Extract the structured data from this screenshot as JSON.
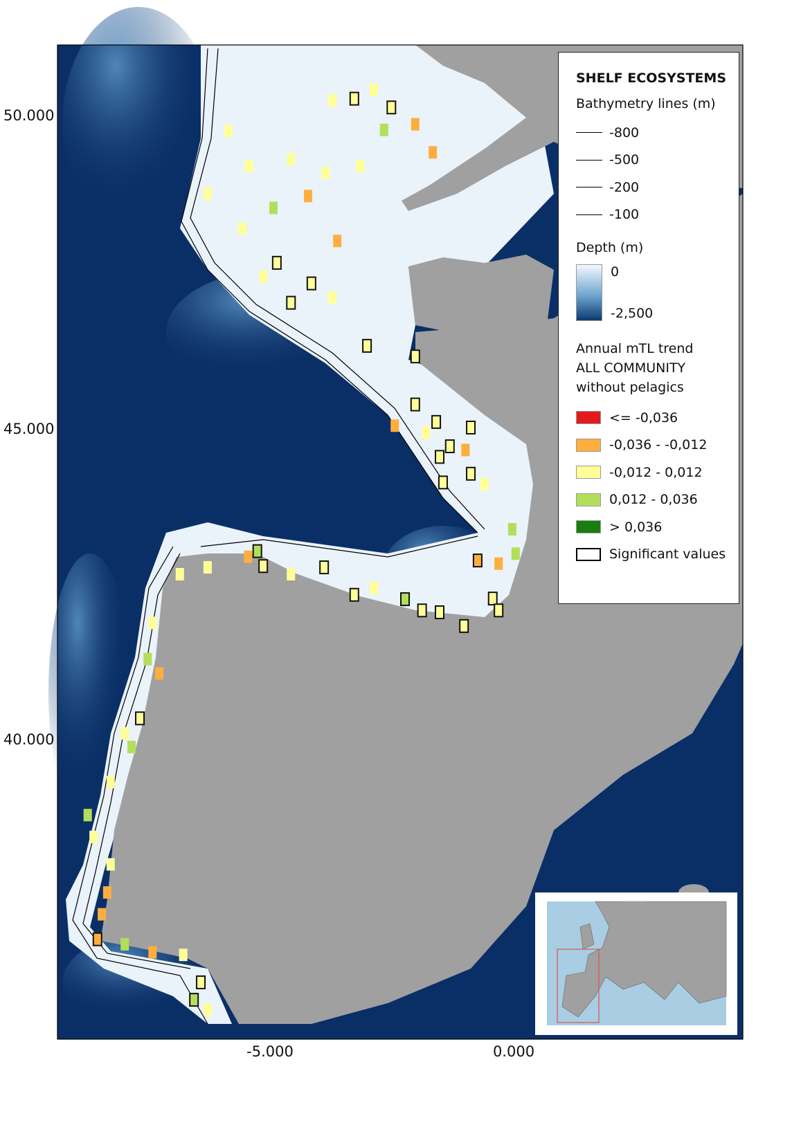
{
  "axes": {
    "lat_ticks": [
      "50.000",
      "45.000",
      "40.000"
    ],
    "lon_ticks": [
      "-5.000",
      "0.000"
    ]
  },
  "legend": {
    "title": "SHELF ECOSYSTEMS",
    "bathymetry_title": "Bathymetry lines (m)",
    "bathymetry": [
      "-800",
      "-500",
      "-200",
      "-100"
    ],
    "depth_title": "Depth (m)",
    "depth_max": "0",
    "depth_min": "-2,500",
    "trend_title_1": "Annual mTL trend",
    "trend_title_2": "ALL COMMUNITY",
    "trend_title_3": "without pelagics",
    "classes": [
      {
        "key": "r",
        "label": "<= -0,036",
        "color": "#e31a1c"
      },
      {
        "key": "o",
        "label": "-0,036 - -0,012",
        "color": "#fdae3f"
      },
      {
        "key": "y",
        "label": "-0,012 - 0,012",
        "color": "#ffff99"
      },
      {
        "key": "g",
        "label": "0,012 - 0,036",
        "color": "#b2df5a"
      },
      {
        "key": "dg",
        "label": "> 0,036",
        "color": "#1a7d10"
      }
    ],
    "significant_label": "Significant values"
  },
  "colors": {
    "ocean": "#0a2f66",
    "land": "#a0a0a0",
    "shelf": "#eaf2fa",
    "inset_sea": "#a9cde2",
    "inset_box": "#d9534f"
  },
  "cells": [
    [
      -3.27,
      50.27,
      "y",
      1
    ],
    [
      -2.51,
      50.13,
      "y",
      1
    ],
    [
      -2.87,
      50.41,
      "y",
      0
    ],
    [
      -3.72,
      50.24,
      "y",
      0
    ],
    [
      -2.02,
      49.86,
      "o",
      0
    ],
    [
      -2.66,
      49.77,
      "g",
      0
    ],
    [
      -1.66,
      49.41,
      "o",
      0
    ],
    [
      -4.22,
      48.71,
      "o",
      0
    ],
    [
      -4.93,
      48.52,
      "g",
      0
    ],
    [
      -3.62,
      47.99,
      "o",
      0
    ],
    [
      -4.86,
      47.64,
      "y",
      1
    ],
    [
      -4.15,
      47.31,
      "y",
      1
    ],
    [
      -4.57,
      47.0,
      "y",
      1
    ],
    [
      -5.85,
      49.75,
      "y",
      0
    ],
    [
      -5.43,
      49.19,
      "y",
      0
    ],
    [
      -6.28,
      48.75,
      "y",
      0
    ],
    [
      -4.57,
      49.3,
      "y",
      0
    ],
    [
      -3.86,
      49.08,
      "y",
      0
    ],
    [
      -3.15,
      49.19,
      "y",
      0
    ],
    [
      -5.57,
      48.19,
      "y",
      0
    ],
    [
      -5.14,
      47.42,
      "y",
      0
    ],
    [
      -3.72,
      47.08,
      "y",
      0
    ],
    [
      -3.01,
      46.31,
      "y",
      1
    ],
    [
      -2.02,
      46.14,
      "y",
      1
    ],
    [
      -2.02,
      45.37,
      "y",
      1
    ],
    [
      -2.44,
      45.03,
      "o",
      0
    ],
    [
      -1.59,
      45.09,
      "y",
      1
    ],
    [
      -0.88,
      45.0,
      "y",
      1
    ],
    [
      -1.8,
      44.92,
      "y",
      0
    ],
    [
      -1.31,
      44.7,
      "y",
      1
    ],
    [
      -0.99,
      44.64,
      "o",
      0
    ],
    [
      -1.52,
      44.53,
      "y",
      1
    ],
    [
      -0.88,
      44.26,
      "y",
      1
    ],
    [
      -1.45,
      44.12,
      "y",
      1
    ],
    [
      -0.6,
      44.09,
      "y",
      0
    ],
    [
      -0.03,
      43.37,
      "g",
      0
    ],
    [
      0.04,
      42.98,
      "g",
      0
    ],
    [
      -0.74,
      42.87,
      "o",
      1
    ],
    [
      -0.31,
      42.82,
      "o",
      0
    ],
    [
      -0.43,
      42.26,
      "y",
      1
    ],
    [
      -0.31,
      42.07,
      "y",
      1
    ],
    [
      -1.02,
      41.82,
      "y",
      1
    ],
    [
      -5.26,
      43.02,
      "g",
      1
    ],
    [
      -5.45,
      42.93,
      "o",
      0
    ],
    [
      -5.14,
      42.78,
      "y",
      1
    ],
    [
      -3.89,
      42.76,
      "y",
      1
    ],
    [
      -3.27,
      42.32,
      "y",
      1
    ],
    [
      -2.87,
      42.43,
      "y",
      0
    ],
    [
      -2.23,
      42.25,
      "g",
      1
    ],
    [
      -1.88,
      42.07,
      "y",
      1
    ],
    [
      -1.52,
      42.04,
      "y",
      1
    ],
    [
      -6.85,
      42.65,
      "y",
      0
    ],
    [
      -6.28,
      42.76,
      "y",
      0
    ],
    [
      -4.57,
      42.65,
      "y",
      0
    ],
    [
      -7.51,
      41.29,
      "g",
      0
    ],
    [
      -7.27,
      41.06,
      "o",
      0
    ],
    [
      -7.41,
      41.87,
      "y",
      0
    ],
    [
      -7.67,
      40.34,
      "y",
      1
    ],
    [
      -7.84,
      39.88,
      "g",
      0
    ],
    [
      -7.98,
      40.1,
      "y",
      0
    ],
    [
      -8.27,
      39.32,
      "y",
      0
    ],
    [
      -8.74,
      38.79,
      "g",
      0
    ],
    [
      -8.62,
      38.44,
      "y",
      0
    ],
    [
      -8.27,
      38.0,
      "y",
      0
    ],
    [
      -8.34,
      37.55,
      "o",
      0
    ],
    [
      -8.45,
      37.2,
      "o",
      0
    ],
    [
      -8.54,
      36.8,
      "o",
      1
    ],
    [
      -7.98,
      36.72,
      "g",
      0
    ],
    [
      -7.41,
      36.59,
      "o",
      0
    ],
    [
      -6.78,
      36.55,
      "y",
      0
    ],
    [
      -6.42,
      36.11,
      "y",
      1
    ],
    [
      -6.56,
      35.83,
      "g",
      1
    ],
    [
      -6.28,
      35.67,
      "y",
      0
    ]
  ]
}
